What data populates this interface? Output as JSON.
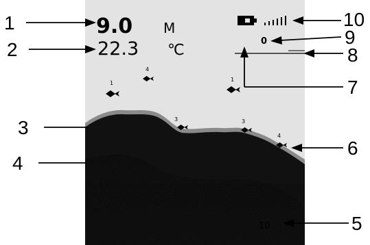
{
  "screen": {
    "depth_value": "9.0",
    "depth_unit": "M",
    "temperature_value": "22.3",
    "temperature_unit": "℃",
    "sensitivity_level": "0",
    "bottom_scale": "10"
  },
  "fish_marks": [
    "1",
    "4",
    "1",
    "3",
    "3",
    "4"
  ],
  "callouts": [
    "1",
    "2",
    "3",
    "4",
    "5",
    "6",
    "7",
    "8",
    "9",
    "10"
  ],
  "colors": {
    "screen_bg": "#e3e3e3",
    "bottom": "#111111",
    "bottom_edge": "#8a8a8a"
  },
  "icons": {
    "battery": "battery-icon",
    "signal": "signal-bars-icon",
    "fish": "fish-icon"
  }
}
